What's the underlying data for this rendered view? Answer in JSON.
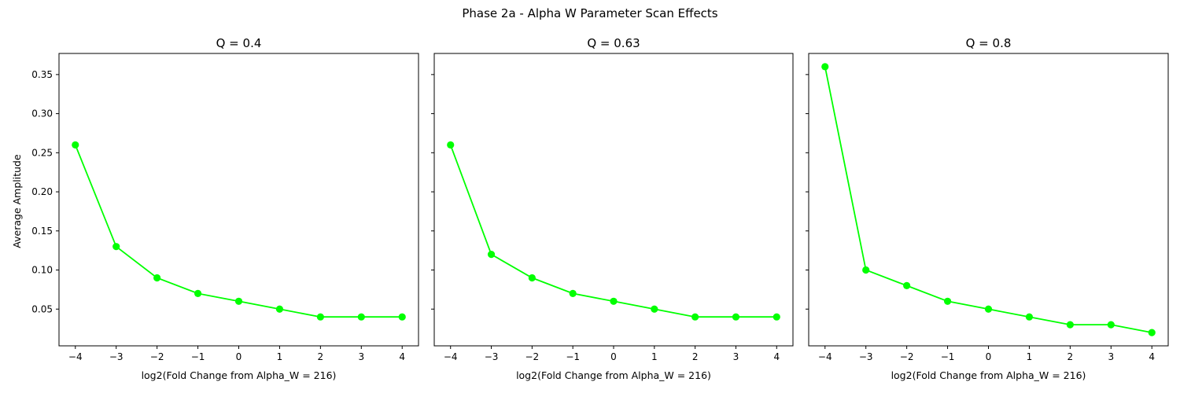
{
  "figure": {
    "title": "Phase 2a - Alpha W Parameter Scan Effects",
    "ylabel": "Average Amplitude"
  },
  "colors": {
    "series": "#00ff00",
    "axis": "#000000",
    "background": "#ffffff"
  },
  "chart_data": [
    {
      "type": "line",
      "title": "Q = 0.4",
      "xlabel": "log2(Fold Change from Alpha_W = 216)",
      "ylabel": "Average Amplitude",
      "x": [
        -4,
        -3,
        -2,
        -1,
        0,
        1,
        2,
        3,
        4
      ],
      "series": [
        {
          "values": [
            0.26,
            0.13,
            0.09,
            0.07,
            0.06,
            0.05,
            0.04,
            0.04,
            0.04
          ]
        }
      ],
      "xticks": [
        "−4",
        "−3",
        "−2",
        "−1",
        "0",
        "1",
        "2",
        "3",
        "4"
      ],
      "yticks": [
        "0.05",
        "0.10",
        "0.15",
        "0.20",
        "0.25",
        "0.30",
        "0.35"
      ],
      "xlim": [
        -4.4,
        4.4
      ],
      "ylim": [
        0.003,
        0.377
      ],
      "grid": false,
      "markers": "circle"
    },
    {
      "type": "line",
      "title": "Q = 0.63",
      "xlabel": "log2(Fold Change from Alpha_W = 216)",
      "x": [
        -4,
        -3,
        -2,
        -1,
        0,
        1,
        2,
        3,
        4
      ],
      "series": [
        {
          "values": [
            0.26,
            0.12,
            0.09,
            0.07,
            0.06,
            0.05,
            0.04,
            0.04,
            0.04
          ]
        }
      ],
      "xticks": [
        "−4",
        "−3",
        "−2",
        "−1",
        "0",
        "1",
        "2",
        "3",
        "4"
      ],
      "xlim": [
        -4.4,
        4.4
      ],
      "ylim": [
        0.003,
        0.377
      ],
      "grid": false,
      "markers": "circle"
    },
    {
      "type": "line",
      "title": "Q = 0.8",
      "xlabel": "log2(Fold Change from Alpha_W = 216)",
      "x": [
        -4,
        -3,
        -2,
        -1,
        0,
        1,
        2,
        3,
        4
      ],
      "series": [
        {
          "values": [
            0.36,
            0.1,
            0.08,
            0.06,
            0.05,
            0.04,
            0.03,
            0.03,
            0.02
          ]
        }
      ],
      "xticks": [
        "−4",
        "−3",
        "−2",
        "−1",
        "0",
        "1",
        "2",
        "3",
        "4"
      ],
      "xlim": [
        -4.4,
        4.4
      ],
      "ylim": [
        0.003,
        0.377
      ],
      "grid": false,
      "markers": "circle"
    }
  ]
}
